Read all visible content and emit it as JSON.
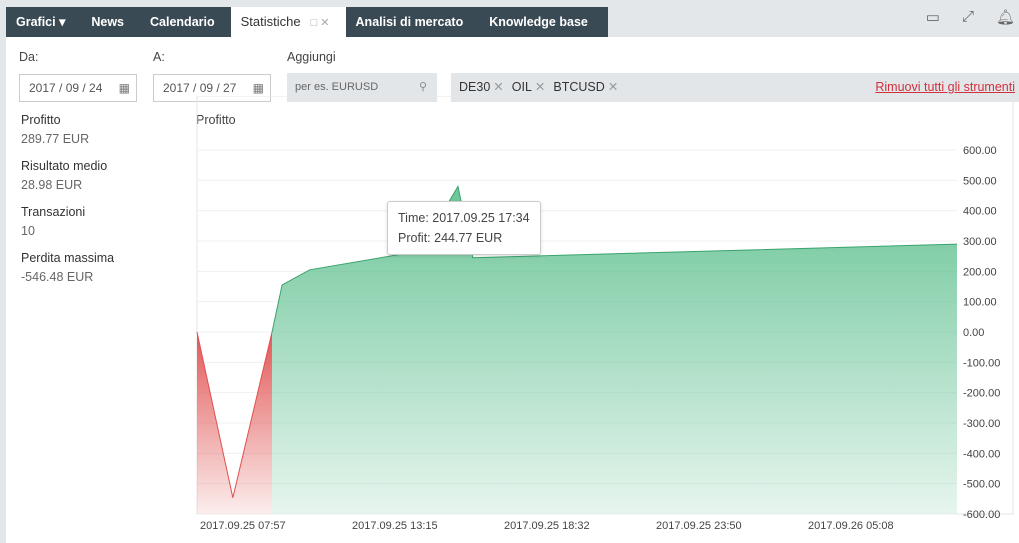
{
  "tabs": [
    {
      "label": "Grafici ▾"
    },
    {
      "label": "News"
    },
    {
      "label": "Calendario"
    },
    {
      "label": "Statistiche",
      "active": true
    },
    {
      "label": "Analisi di mercato"
    },
    {
      "label": "Knowledge base"
    }
  ],
  "filters": {
    "from_label": "Da:",
    "from_value": "2017 / 09 / 24",
    "to_label": "A:",
    "to_value": "2017 / 09 / 27",
    "add_label": "Aggiungi",
    "search_placeholder": "per es. EURUSD",
    "instruments": [
      "DE30",
      "OIL",
      "BTCUSD"
    ],
    "remove_all": "Rimuovi tutti gli strumenti"
  },
  "stats": [
    {
      "label": "Profitto",
      "value": "289.77 EUR",
      "color": "green"
    },
    {
      "label": "Risultato medio",
      "value": "28.98 EUR",
      "color": "green"
    },
    {
      "label": "Transazioni",
      "value": "10",
      "color": "purple"
    },
    {
      "label": "Perdita massima",
      "value": "-546.48 EUR",
      "color": "purple"
    }
  ],
  "tooltip": {
    "time": "Time: 2017.09.25 17:34",
    "profit": "Profit: 244.77 EUR"
  },
  "chart_data": {
    "type": "area",
    "title": "Profitto",
    "xlabel": "",
    "ylabel": "",
    "ylim": [
      -600,
      600
    ],
    "yticks": [
      600,
      500,
      400,
      300,
      200,
      100,
      0,
      -100,
      -200,
      -300,
      -400,
      -500,
      -600
    ],
    "xticks": [
      {
        "t": 0,
        "label": "2017.09.25 07:57"
      },
      {
        "t": 318,
        "label": "2017.09.25 13:15"
      },
      {
        "t": 636,
        "label": "2017.09.25 18:32"
      },
      {
        "t": 954,
        "label": "2017.09.25 23:50"
      },
      {
        "t": 1272,
        "label": "2017.09.26 05:08"
      }
    ],
    "xlim": [
      0,
      1590
    ],
    "points": [
      [
        0,
        0
      ],
      [
        75,
        -546.48
      ],
      [
        157,
        0
      ],
      [
        178,
        155
      ],
      [
        236,
        205
      ],
      [
        466,
        267
      ],
      [
        546,
        480
      ],
      [
        577,
        244.77
      ],
      [
        1590,
        289.77
      ]
    ],
    "colors": {
      "positive": "#5cbf8e",
      "negative": "#e0504f"
    }
  }
}
